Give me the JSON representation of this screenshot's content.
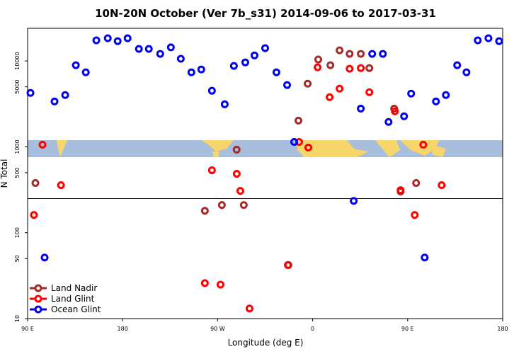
{
  "chart_data": {
    "type": "scatter",
    "title": "10N-20N October (Ver 7b_s31)   2014-09-06 to 2017-03-31",
    "x_label": "Longitude (deg E)",
    "y_label": "N Total",
    "xlim": [
      90,
      540
    ],
    "xticks": [
      {
        "value": 90,
        "label": "90 E"
      },
      {
        "value": 180,
        "label": "180"
      },
      {
        "value": 270,
        "label": "90 W"
      },
      {
        "value": 360,
        "label": "0"
      },
      {
        "value": 450,
        "label": "90 E"
      },
      {
        "value": 540,
        "label": "180"
      }
    ],
    "ylim": [
      10,
      24000
    ],
    "yticks": [
      10,
      50,
      100,
      500,
      1000,
      5000,
      10000
    ],
    "log_y": true,
    "reference_line": 250,
    "legend": "lower left",
    "series": [
      {
        "name": "Land Nadir",
        "color": "#a52a2a",
        "x": [
          97.4,
          257.9,
          274,
          294.8,
          288,
          337,
          346.5,
          355.3,
          365.3,
          376.8,
          385.5,
          395,
          405.6,
          413.7,
          437.2,
          443.3,
          458
        ],
        "values": [
          379,
          180,
          210,
          210,
          927,
          42,
          2020,
          5440,
          10400,
          8920,
          13300,
          12100,
          12100,
          8260,
          2790,
          302,
          379
        ]
      },
      {
        "name": "Land Glint",
        "color": "#ff0000",
        "x": [
          104.1,
          96,
          121.6,
          257.9,
          272.7,
          264.6,
          288.1,
          291.5,
          300.2,
          336.5,
          347.2,
          355.9,
          364.7,
          376.1,
          385.5,
          395,
          405.6,
          413.7,
          437.9,
          443.3,
          456.7,
          464.8,
          482.2
        ],
        "values": [
          1060,
          161,
          358,
          25.9,
          24.9,
          534,
          485,
          307,
          13.1,
          42,
          1140,
          981,
          8430,
          3790,
          4760,
          8110,
          8260,
          4330,
          2590,
          313,
          161,
          1060,
          358
        ]
      },
      {
        "name": "Ocean Glint",
        "color": "#0000ee",
        "x": [
          92.7,
          106.1,
          115.5,
          125.6,
          135.7,
          145.1,
          155.1,
          165.9,
          175.3,
          184.7,
          195.4,
          204.8,
          215.6,
          225.7,
          235.1,
          245.1,
          254.5,
          264.6,
          276.7,
          285.4,
          296.2,
          304.9,
          315,
          325.7,
          335.8,
          342.5,
          398.9,
          405.6,
          416.4,
          426.5,
          431.9,
          446.6,
          453.3,
          466.1,
          476.8,
          486.2,
          496.9,
          505.7,
          516.4,
          526.5,
          536.6
        ],
        "values": [
          4250,
          51.4,
          3380,
          4010,
          8920,
          7380,
          17400,
          18400,
          17000,
          18400,
          13800,
          13800,
          12100,
          14400,
          10600,
          7380,
          7960,
          4500,
          3130,
          8750,
          9620,
          11600,
          14100,
          7380,
          5240,
          1140,
          235,
          2790,
          12100,
          12100,
          1950,
          2270,
          4170,
          51.4,
          3380,
          4010,
          8920,
          7380,
          17400,
          18400,
          17000
        ]
      }
    ]
  }
}
